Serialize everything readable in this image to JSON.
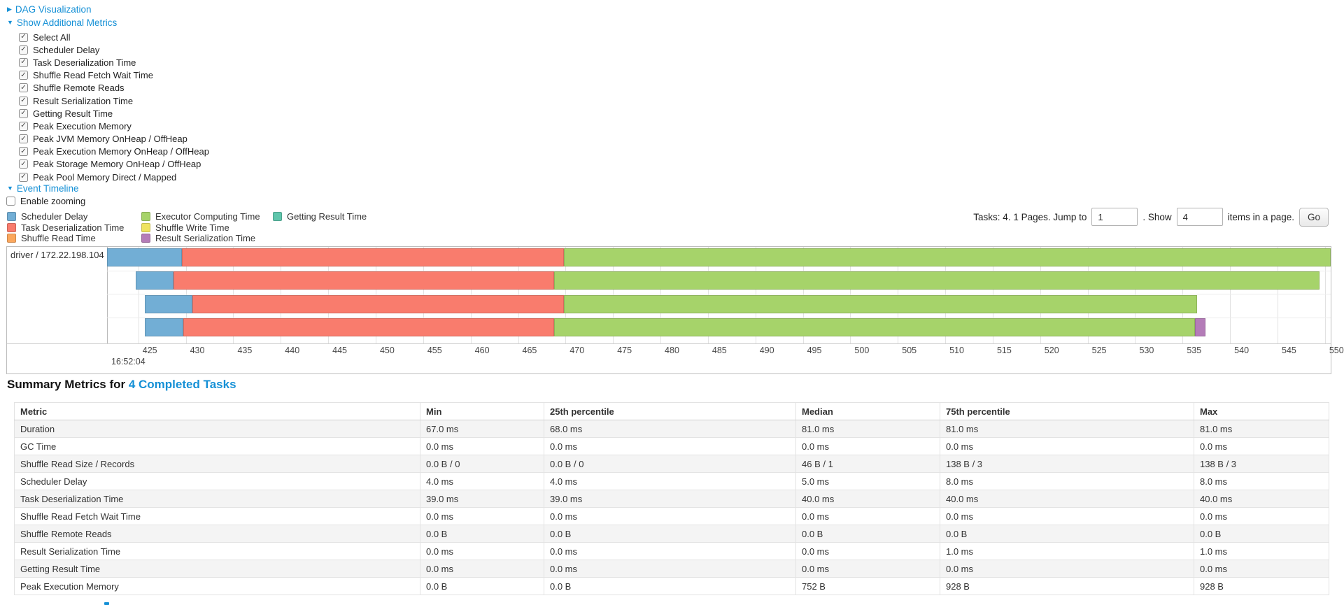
{
  "colors": {
    "link": "#1590d6",
    "segment_colors": {
      "scheduler-delay": "#72AED5",
      "task-deserialization": "#F97C6D",
      "shuffle-read": "#FBA75D",
      "executor-computing": "#A6D36A",
      "shuffle-write": "#EFE35F",
      "result-serialization": "#B47CB8",
      "getting-result": "#5FC6AC"
    }
  },
  "controls": {
    "dag_link": "DAG Visualization",
    "metrics_link": "Show Additional Metrics",
    "timeline_link": "Event Timeline",
    "metric_checkboxes": [
      "Select All",
      "Scheduler Delay",
      "Task Deserialization Time",
      "Shuffle Read Fetch Wait Time",
      "Shuffle Remote Reads",
      "Result Serialization Time",
      "Getting Result Time",
      "Peak Execution Memory",
      "Peak JVM Memory OnHeap / OffHeap",
      "Peak Execution Memory OnHeap / OffHeap",
      "Peak Storage Memory OnHeap / OffHeap",
      "Peak Pool Memory Direct / Mapped"
    ],
    "enable_zooming_label": "Enable zooming"
  },
  "legend": {
    "columns": [
      [
        {
          "label": "Scheduler Delay",
          "color_key": "scheduler-delay"
        },
        {
          "label": "Task Deserialization Time",
          "color_key": "task-deserialization"
        },
        {
          "label": "Shuffle Read Time",
          "color_key": "shuffle-read"
        }
      ],
      [
        {
          "label": "Executor Computing Time",
          "color_key": "executor-computing"
        },
        {
          "label": "Shuffle Write Time",
          "color_key": "shuffle-write"
        },
        {
          "label": "Result Serialization Time",
          "color_key": "result-serialization"
        }
      ],
      [
        {
          "label": "Getting Result Time",
          "color_key": "getting-result"
        }
      ]
    ]
  },
  "pagination": {
    "prefix": "Tasks: 4. 1 Pages. Jump to",
    "jump_value": "1",
    "mid": ". Show",
    "show_value": "4",
    "suffix": "items in a page.",
    "go_label": "Go"
  },
  "chart_data": {
    "type": "timeline",
    "title": "Event Timeline",
    "group_label": "driver / 172.22.198.104",
    "x_axis": {
      "tick_min": 425,
      "tick_max": 550,
      "tick_step": 5,
      "view_min": 421.7,
      "view_max": 550.6,
      "base_time_label": "16:52:04",
      "grid": true
    },
    "tasks": [
      {
        "segments": [
          {
            "name": "scheduler-delay",
            "start": 421.7,
            "end": 429.6
          },
          {
            "name": "task-deserialization",
            "start": 429.6,
            "end": 469.8
          },
          {
            "name": "executor-computing",
            "start": 469.8,
            "end": 550.6
          }
        ]
      },
      {
        "segments": [
          {
            "name": "scheduler-delay",
            "start": 424.7,
            "end": 428.7
          },
          {
            "name": "task-deserialization",
            "start": 428.7,
            "end": 468.8
          },
          {
            "name": "executor-computing",
            "start": 468.8,
            "end": 549.4
          }
        ]
      },
      {
        "segments": [
          {
            "name": "scheduler-delay",
            "start": 425.7,
            "end": 430.7
          },
          {
            "name": "task-deserialization",
            "start": 430.7,
            "end": 469.8
          },
          {
            "name": "executor-computing",
            "start": 469.8,
            "end": 536.5
          }
        ]
      },
      {
        "segments": [
          {
            "name": "scheduler-delay",
            "start": 425.7,
            "end": 429.7
          },
          {
            "name": "task-deserialization",
            "start": 429.7,
            "end": 468.8
          },
          {
            "name": "executor-computing",
            "start": 468.8,
            "end": 536.3
          },
          {
            "name": "result-serialization",
            "start": 536.3,
            "end": 537.4
          }
        ]
      }
    ]
  },
  "summary": {
    "heading_prefix": "Summary Metrics for ",
    "heading_link": "4 Completed Tasks",
    "columns": [
      "Metric",
      "Min",
      "25th percentile",
      "Median",
      "75th percentile",
      "Max"
    ],
    "rows": [
      [
        "Duration",
        "67.0 ms",
        "68.0 ms",
        "81.0 ms",
        "81.0 ms",
        "81.0 ms"
      ],
      [
        "GC Time",
        "0.0 ms",
        "0.0 ms",
        "0.0 ms",
        "0.0 ms",
        "0.0 ms"
      ],
      [
        "Shuffle Read Size / Records",
        "0.0 B / 0",
        "0.0 B / 0",
        "46 B / 1",
        "138 B / 3",
        "138 B / 3"
      ],
      [
        "Scheduler Delay",
        "4.0 ms",
        "4.0 ms",
        "5.0 ms",
        "8.0 ms",
        "8.0 ms"
      ],
      [
        "Task Deserialization Time",
        "39.0 ms",
        "39.0 ms",
        "40.0 ms",
        "40.0 ms",
        "40.0 ms"
      ],
      [
        "Shuffle Read Fetch Wait Time",
        "0.0 ms",
        "0.0 ms",
        "0.0 ms",
        "0.0 ms",
        "0.0 ms"
      ],
      [
        "Shuffle Remote Reads",
        "0.0 B",
        "0.0 B",
        "0.0 B",
        "0.0 B",
        "0.0 B"
      ],
      [
        "Result Serialization Time",
        "0.0 ms",
        "0.0 ms",
        "0.0 ms",
        "1.0 ms",
        "1.0 ms"
      ],
      [
        "Getting Result Time",
        "0.0 ms",
        "0.0 ms",
        "0.0 ms",
        "0.0 ms",
        "0.0 ms"
      ],
      [
        "Peak Execution Memory",
        "0.0 B",
        "0.0 B",
        "752 B",
        "928 B",
        "928 B"
      ]
    ]
  }
}
